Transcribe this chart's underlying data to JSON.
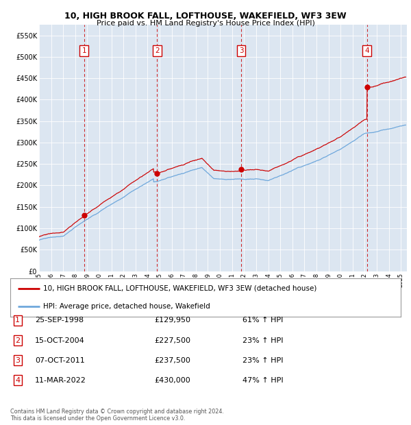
{
  "title": "10, HIGH BROOK FALL, LOFTHOUSE, WAKEFIELD, WF3 3EW",
  "subtitle": "Price paid vs. HM Land Registry's House Price Index (HPI)",
  "sales": [
    {
      "num": 1,
      "date_num": 1998.73,
      "price": 129950
    },
    {
      "num": 2,
      "date_num": 2004.79,
      "price": 227500
    },
    {
      "num": 3,
      "date_num": 2011.77,
      "price": 237500
    },
    {
      "num": 4,
      "date_num": 2022.19,
      "price": 430000
    }
  ],
  "legend_entries": [
    "10, HIGH BROOK FALL, LOFTHOUSE, WAKEFIELD, WF3 3EW (detached house)",
    "HPI: Average price, detached house, Wakefield"
  ],
  "table_rows": [
    [
      "1",
      "25-SEP-1998",
      "£129,950",
      "61% ↑ HPI"
    ],
    [
      "2",
      "15-OCT-2004",
      "£227,500",
      "23% ↑ HPI"
    ],
    [
      "3",
      "07-OCT-2011",
      "£237,500",
      "23% ↑ HPI"
    ],
    [
      "4",
      "11-MAR-2022",
      "£430,000",
      "47% ↑ HPI"
    ]
  ],
  "footer": "Contains HM Land Registry data © Crown copyright and database right 2024.\nThis data is licensed under the Open Government Licence v3.0.",
  "hpi_color": "#6fa8dc",
  "sale_color": "#cc0000",
  "bg_color": "#dce6f1",
  "plot_bg": "#ffffff",
  "ylim": [
    0,
    575000
  ],
  "xlim_start": 1995.0,
  "xlim_end": 2025.5,
  "yticks": [
    0,
    50000,
    100000,
    150000,
    200000,
    250000,
    300000,
    350000,
    400000,
    450000,
    500000,
    550000
  ]
}
